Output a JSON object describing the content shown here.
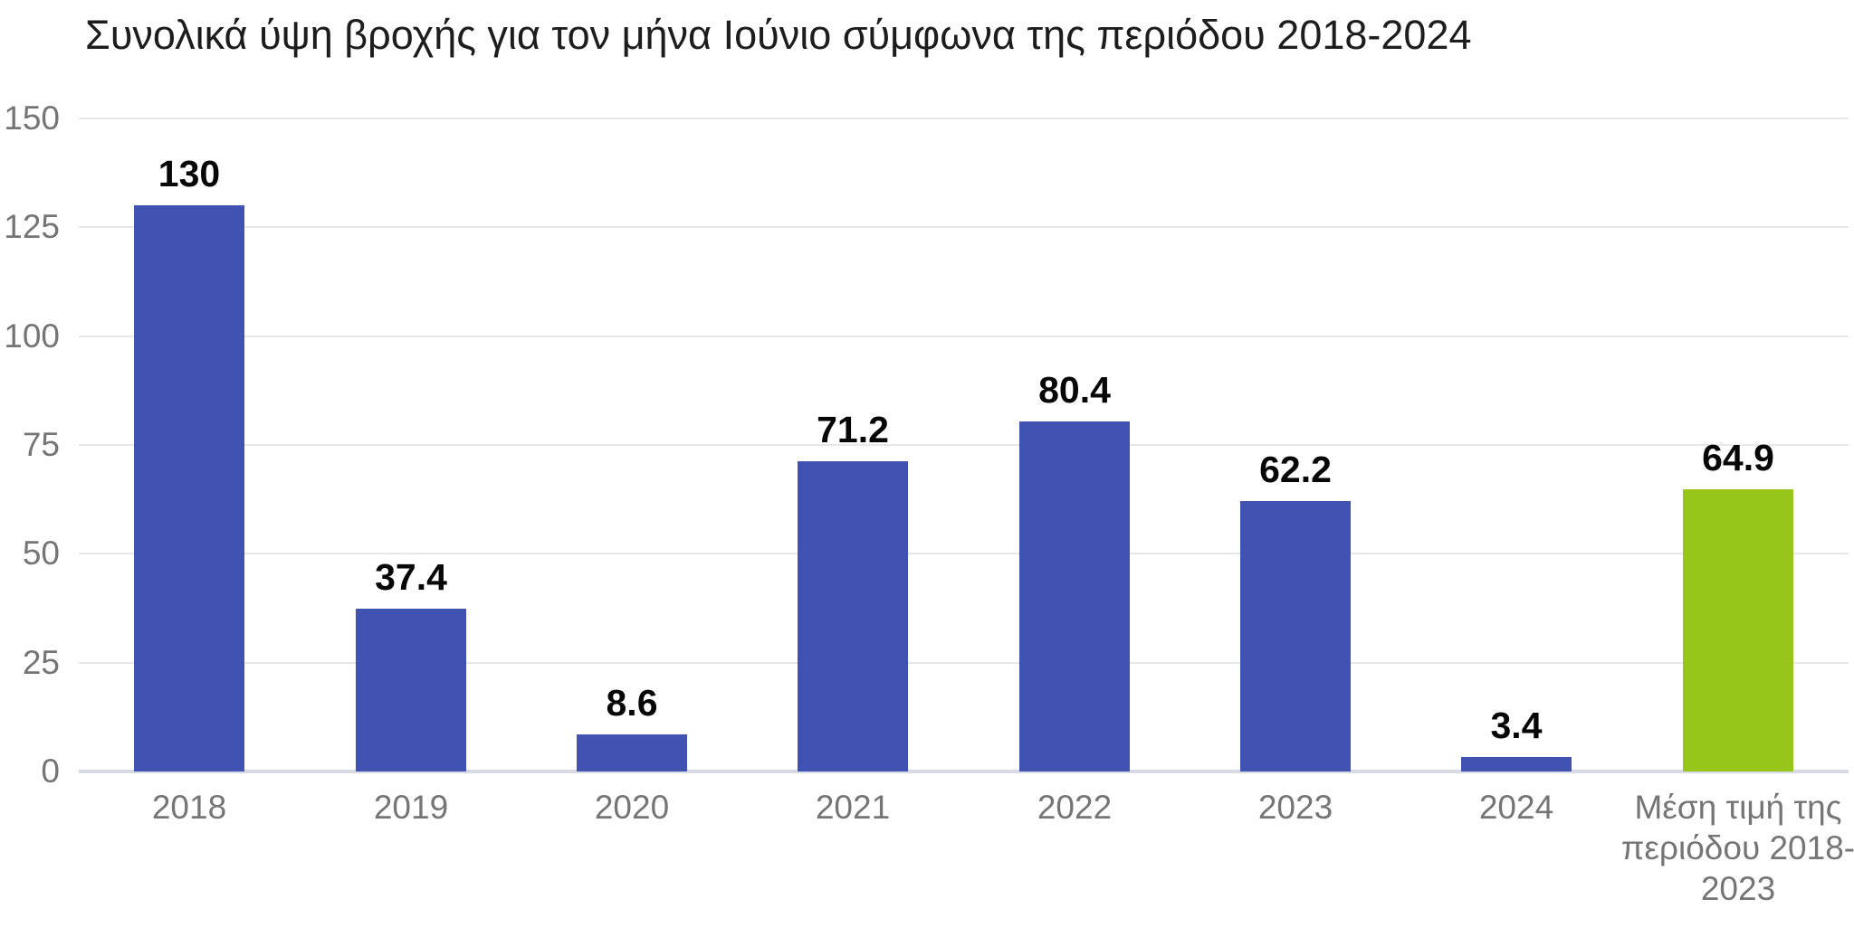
{
  "chart_data": {
    "type": "bar",
    "title": "Συνολικά ύψη βροχής για τον μήνα Ιούνιο σύμφωνα της περιόδου 2018-2024",
    "categories": [
      "2018",
      "2019",
      "2020",
      "2021",
      "2022",
      "2023",
      "2024",
      "Μέση τιμή της περιόδου 2018-2023"
    ],
    "values": [
      130,
      37.4,
      8.6,
      71.2,
      80.4,
      62.2,
      3.4,
      64.9
    ],
    "value_labels": [
      "130",
      "37.4",
      "8.6",
      "71.2",
      "80.4",
      "62.2",
      "3.4",
      "64.9"
    ],
    "bar_colors": [
      "#4053b3",
      "#4053b3",
      "#4053b3",
      "#4053b3",
      "#4053b3",
      "#4053b3",
      "#4053b3",
      "#97c51a"
    ],
    "xlabel": "",
    "ylabel": "",
    "ylim": [
      0,
      150
    ],
    "yticks": [
      0,
      25,
      50,
      75,
      100,
      125,
      150
    ],
    "ytick_labels": [
      "0",
      "25",
      "50",
      "75",
      "100",
      "125",
      "150"
    ],
    "grid": true,
    "legend": "none",
    "colors": {
      "bar_default": "#4053b3",
      "bar_average": "#97c51a",
      "gridline": "#e8e8e8",
      "baseline": "#d7dbe6",
      "axis_text": "#757575",
      "value_text": "#070707",
      "title_text": "#1d1d1d",
      "background": "#ffffff"
    }
  }
}
